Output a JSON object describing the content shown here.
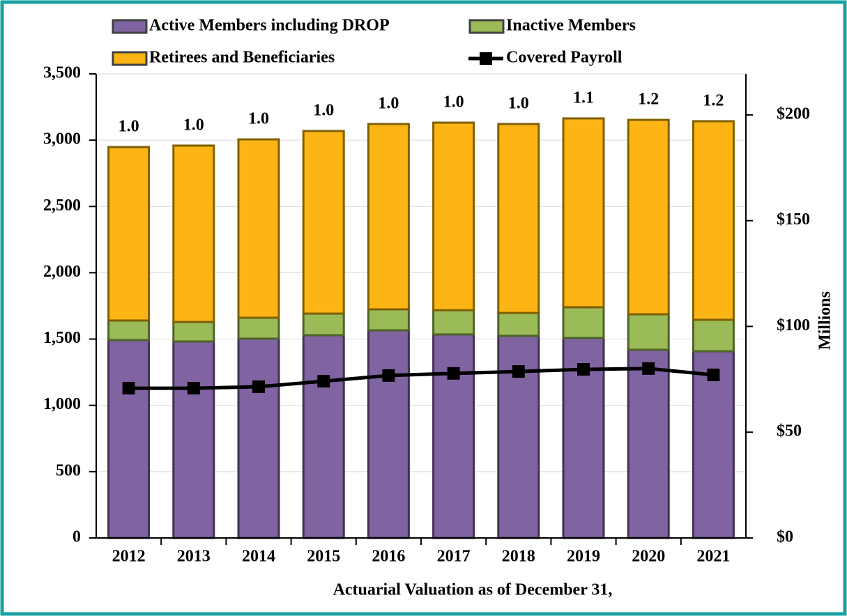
{
  "chart_data": {
    "type": "bar",
    "stacked": true,
    "x_label": "Actuarial Valuation as of December 31,",
    "y2_label": "Millions",
    "categories": [
      "2012",
      "2013",
      "2014",
      "2015",
      "2016",
      "2017",
      "2018",
      "2019",
      "2020",
      "2021"
    ],
    "series": [
      {
        "name": "Active Members including DROP",
        "color": "#8064a2",
        "values": [
          1492,
          1482,
          1503,
          1529,
          1566,
          1535,
          1524,
          1508,
          1419,
          1408
        ]
      },
      {
        "name": "Inactive Members",
        "color": "#9bbb59",
        "values": [
          148,
          147,
          158,
          163,
          158,
          183,
          173,
          232,
          268,
          237
        ]
      },
      {
        "name": "Retirees and Beneficiaries",
        "color": "#fdb515",
        "values": [
          1308,
          1330,
          1345,
          1377,
          1398,
          1414,
          1425,
          1424,
          1466,
          1498
        ]
      },
      {
        "name": "Covered Payroll",
        "color": "#000000",
        "type": "line",
        "axis": "y2",
        "values": [
          70.8,
          70.8,
          71.5,
          74.1,
          76.8,
          77.8,
          78.7,
          79.7,
          80.1,
          77.1
        ]
      }
    ],
    "bar_labels": [
      "1.0",
      "1.0",
      "1.0",
      "1.0",
      "1.0",
      "1.0",
      "1.0",
      "1.1",
      "1.2",
      "1.2"
    ],
    "ylim": [
      0,
      3500
    ],
    "yticks": [
      0,
      500,
      {
        "value": 1000,
        "label": "1,000"
      },
      {
        "value": 1500,
        "label": "1,500"
      },
      {
        "value": 2000,
        "label": "2,000"
      },
      {
        "value": 2500,
        "label": "2,500"
      },
      {
        "value": 3000,
        "label": "3,000"
      },
      {
        "value": 3500,
        "label": "3,500"
      }
    ],
    "y2lim": [
      0,
      219.4
    ],
    "y2ticks": [
      {
        "value": 0,
        "label": "$0"
      },
      {
        "value": 50,
        "label": "$50"
      },
      {
        "value": 100,
        "label": "$100"
      },
      {
        "value": 150,
        "label": "$150"
      },
      {
        "value": 200,
        "label": "$200"
      }
    ],
    "grid": true,
    "legend": "top"
  }
}
